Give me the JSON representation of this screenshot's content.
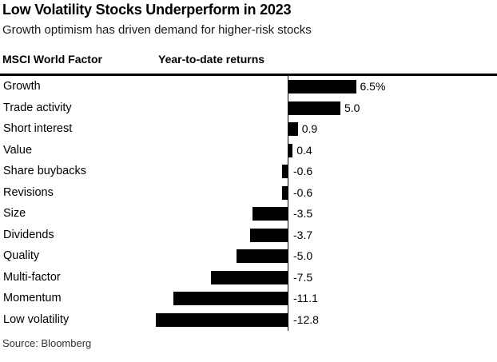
{
  "page": {
    "title": "Low Volatility Stocks Underperform in 2023",
    "subtitle": "Growth optimism has driven demand for higher-risk stocks",
    "source": "Source: Bloomberg"
  },
  "table_headers": {
    "factor": "MSCI World Factor",
    "returns": "Year-to-date returns"
  },
  "colors": {
    "background": "#ffffff",
    "bar": "#000000",
    "title": "#000000",
    "subtitle": "#1a1a1a",
    "source": "#333333",
    "axis": "#000000"
  },
  "chart_data": {
    "type": "bar",
    "orientation": "horizontal",
    "title": "Low Volatility Stocks Underperform in 2023",
    "subtitle": "Growth optimism has driven demand for higher-risk stocks",
    "xlabel": "Year-to-date returns",
    "ylabel": "MSCI World Factor",
    "unit": "percent",
    "categories": [
      "Growth",
      "Trade activity",
      "Short interest",
      "Value",
      "Share buybacks",
      "Revisions",
      "Size",
      "Dividends",
      "Quality",
      "Multi-factor",
      "Momentum",
      "Low volatility"
    ],
    "values": [
      6.5,
      5.0,
      0.9,
      0.4,
      -0.6,
      -0.6,
      -3.5,
      -3.7,
      -5.0,
      -7.5,
      -11.1,
      -12.8
    ],
    "value_labels": [
      "6.5%",
      "5.0",
      "0.9",
      "0.4",
      "-0.6",
      "-0.6",
      "-3.5",
      "-3.7",
      "-5.0",
      "-7.5",
      "-11.1",
      "-12.8"
    ],
    "baseline": 0,
    "xlim": [
      -14,
      8
    ],
    "value_axis_hidden": true,
    "grid": false,
    "legend": false,
    "bar_color": "#000000",
    "source": "Source: Bloomberg"
  }
}
